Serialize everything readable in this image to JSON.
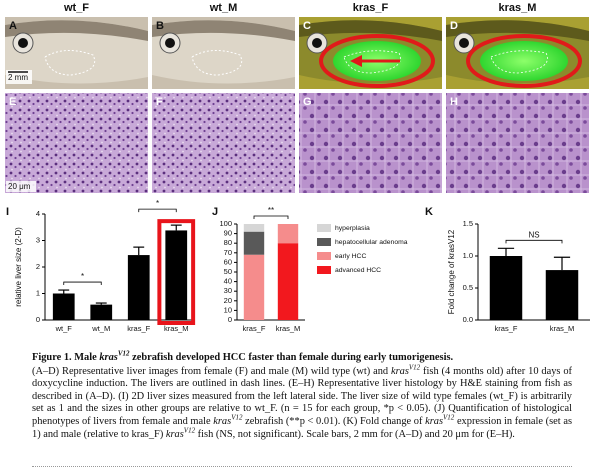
{
  "photos": {
    "titles": [
      "wt_F",
      "wt_M",
      "kras_F",
      "kras_M"
    ],
    "panel_letters": [
      "A",
      "B",
      "C",
      "D",
      "E",
      "F",
      "G",
      "H"
    ],
    "scale_bars": [
      "2 mm",
      "20 μm"
    ]
  },
  "chart_data": [
    {
      "type": "bar",
      "panel": "I",
      "ylabel": "relative liver size (2-D)",
      "categories": [
        "wt_F",
        "wt_M",
        "kras_F",
        "kras_M"
      ],
      "values": [
        1.0,
        0.58,
        2.45,
        3.38
      ],
      "errors": [
        0.13,
        0.06,
        0.3,
        0.2
      ],
      "color": "#000000",
      "ylim": [
        0,
        4
      ],
      "yticks": [
        0,
        1,
        2,
        3,
        4
      ],
      "highlight": {
        "index": 3,
        "color": "#e8141b"
      },
      "annotations": [
        {
          "text": "*",
          "from": 0,
          "to": 1
        },
        {
          "text": "*",
          "from": 2,
          "to": 3
        }
      ]
    },
    {
      "type": "stacked_bar",
      "panel": "J",
      "categories": [
        "kras_F",
        "kras_M"
      ],
      "series": [
        {
          "name": "advanced HCC",
          "color": "#f2181e",
          "values": [
            0,
            80
          ]
        },
        {
          "name": "early HCC",
          "color": "#f58c8c",
          "values": [
            68,
            20
          ]
        },
        {
          "name": "hepatocellular adenoma",
          "color": "#595959",
          "values": [
            24,
            0
          ]
        },
        {
          "name": "hyperplasia",
          "color": "#d6d6d6",
          "values": [
            8,
            0
          ]
        }
      ],
      "ylim": [
        0,
        100
      ],
      "yticks": [
        0,
        10,
        20,
        30,
        40,
        50,
        60,
        70,
        80,
        90,
        100
      ],
      "annotations": [
        {
          "text": "**",
          "from": 0,
          "to": 1
        }
      ]
    },
    {
      "type": "bar",
      "panel": "K",
      "ylabel": "Fold change of krasV12",
      "categories": [
        "kras_F",
        "kras_M"
      ],
      "values": [
        1.0,
        0.78
      ],
      "errors": [
        0.12,
        0.2
      ],
      "color": "#000000",
      "ylim": [
        0,
        1.5
      ],
      "yticks": [
        {
          "value": 0,
          "label": "0.0"
        },
        0.5,
        {
          "value": 1,
          "label": "1.0"
        },
        1.5
      ],
      "annotations": [
        {
          "text": "NS",
          "from": 0,
          "to": 1
        }
      ]
    }
  ],
  "caption": {
    "title": [
      {
        "text": "Figure 1.  Male ",
        "style": ""
      },
      {
        "text": "kras",
        "style": "i"
      },
      {
        "text": "V12",
        "style": "sup"
      },
      {
        "text": " zebrafish developed HCC faster than female during early tumorigenesis.",
        "style": ""
      }
    ],
    "body": [
      {
        "text": "(A–D) Representative liver images from female (F) and male (M) wild type (wt) and ",
        "style": ""
      },
      {
        "text": "kras",
        "style": "i"
      },
      {
        "text": "V12",
        "style": "sup"
      },
      {
        "text": " fish (4 months old) after 10 days of doxycycline induction. The livers are outlined in dash lines. (E–H) Representative liver histology by H&E staining from fish as described in (A–D). (I) 2D liver sizes measured from the left lateral side. The liver size of wild type females (wt_F) is arbitrarily set as 1 and the sizes in other groups are relative to wt_F. (n = 15 for each group, *p < 0.05). (J) Quantification of histological phenotypes of livers from female and male ",
        "style": ""
      },
      {
        "text": "kras",
        "style": "i"
      },
      {
        "text": "V12",
        "style": "sup"
      },
      {
        "text": " zebrafish (**p < 0.01). (K) Fold change of ",
        "style": ""
      },
      {
        "text": "kras",
        "style": "i"
      },
      {
        "text": "V12",
        "style": "sup"
      },
      {
        "text": " expression in female (set as 1) and male (relative to kras_F) ",
        "style": ""
      },
      {
        "text": "kras",
        "style": "i"
      },
      {
        "text": "V12",
        "style": "sup"
      },
      {
        "text": " fish (NS, not significant). Scale bars, 2 mm for (A–D) and 20 μm for (E–H).",
        "style": ""
      }
    ]
  }
}
